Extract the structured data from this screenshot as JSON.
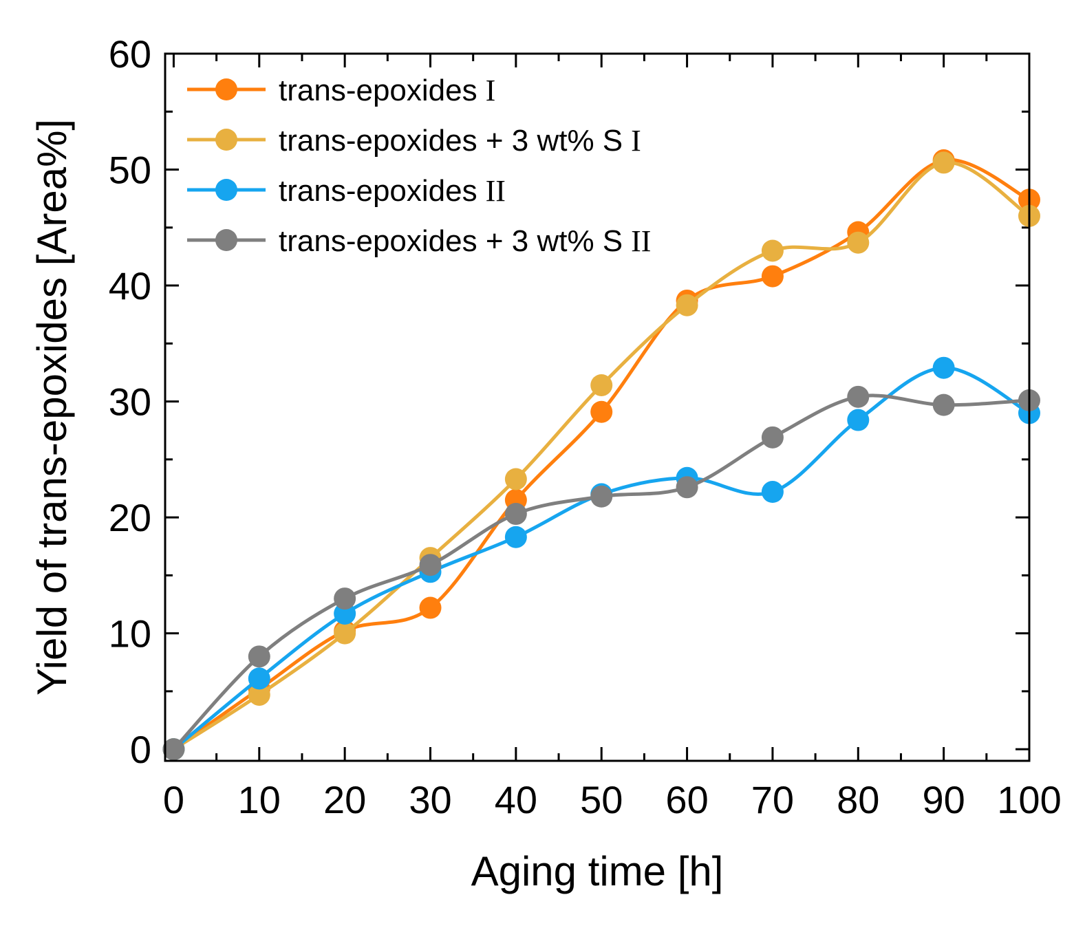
{
  "chart_data": {
    "type": "line",
    "xlabel": "Aging time [h]",
    "ylabel": "Yield of trans-epoxides [Area%]",
    "xlim": [
      -1,
      100
    ],
    "ylim": [
      -1,
      60
    ],
    "xticks": [
      0,
      10,
      20,
      30,
      40,
      50,
      60,
      70,
      80,
      90,
      100
    ],
    "yticks": [
      0,
      10,
      20,
      30,
      40,
      50,
      60
    ],
    "legend_position": "top-left",
    "series": [
      {
        "name": "trans-epoxides",
        "name_suffix": "I",
        "color": "#ff7f0e",
        "x": [
          0,
          10,
          20,
          30,
          40,
          50,
          60,
          70,
          80,
          90,
          100
        ],
        "y": [
          0,
          5.2,
          10.2,
          12.2,
          21.5,
          29.1,
          38.7,
          40.8,
          44.6,
          50.8,
          47.4
        ]
      },
      {
        "name": "trans-epoxides + 3 wt% S",
        "name_suffix": "I",
        "color": "#e8b040",
        "x": [
          0,
          10,
          20,
          30,
          40,
          50,
          60,
          70,
          80,
          90,
          100
        ],
        "y": [
          0,
          4.7,
          10.0,
          16.5,
          23.3,
          31.4,
          38.3,
          43.0,
          43.7,
          50.6,
          46.0
        ]
      },
      {
        "name": "trans-epoxides",
        "name_suffix": "II",
        "color": "#16a5ef",
        "x": [
          0,
          10,
          20,
          30,
          40,
          50,
          60,
          70,
          80,
          90,
          100
        ],
        "y": [
          0,
          6.1,
          11.7,
          15.3,
          18.3,
          22.0,
          23.4,
          22.2,
          28.4,
          32.9,
          29.0
        ]
      },
      {
        "name": "trans-epoxides + 3 wt% S",
        "name_suffix": "II",
        "color": "#7f7f7f",
        "x": [
          0,
          10,
          20,
          30,
          40,
          50,
          60,
          70,
          80,
          90,
          100
        ],
        "y": [
          0,
          8.0,
          13.0,
          15.9,
          20.3,
          21.8,
          22.6,
          26.9,
          30.4,
          29.7,
          30.1
        ]
      }
    ]
  }
}
